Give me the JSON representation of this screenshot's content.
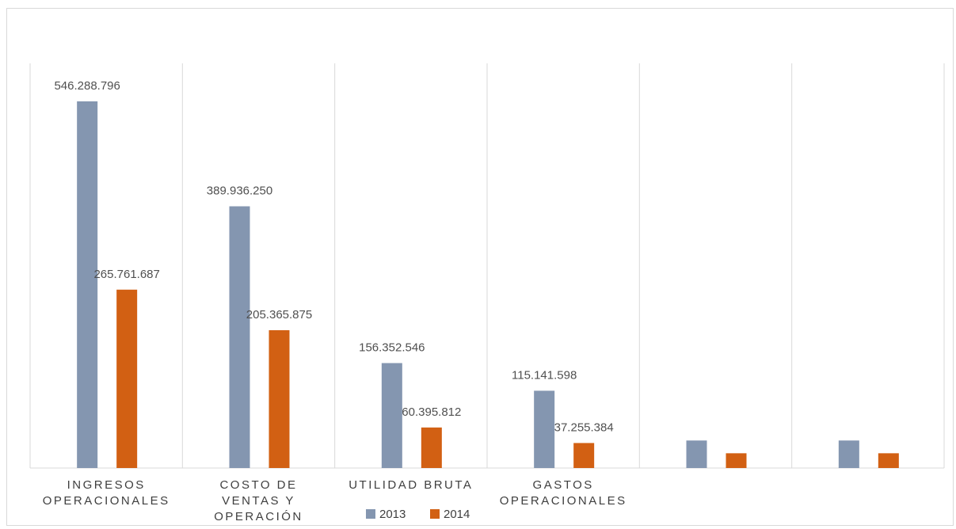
{
  "chart_data": {
    "type": "bar",
    "categories": [
      [
        "INGRESOS",
        "OPERACIONALES"
      ],
      [
        "COSTO DE",
        "VENTAS Y",
        "OPERACIÓN"
      ],
      [
        "UTILIDAD BRUTA"
      ],
      [
        "GASTOS",
        "OPERACIONALES"
      ],
      [],
      []
    ],
    "series": [
      {
        "name": "2013",
        "color": "#8496b0",
        "values": [
          546288796,
          389936250,
          156352546,
          115141598,
          41000000,
          41000000
        ],
        "labels": [
          "546.288.796",
          "389.936.250",
          "156.352.546",
          "115.141.598",
          "",
          ""
        ]
      },
      {
        "name": "2014",
        "color": "#d26013",
        "values": [
          265761687,
          205365875,
          60395812,
          37255384,
          22000000,
          22000000
        ],
        "labels": [
          "265.761.687",
          "205.365.875",
          "60.395.812",
          "37.255.384",
          "",
          ""
        ]
      }
    ],
    "ylim": [
      0,
      560000000
    ],
    "grid": "vertical-category-separators",
    "legend_position": "bottom"
  }
}
